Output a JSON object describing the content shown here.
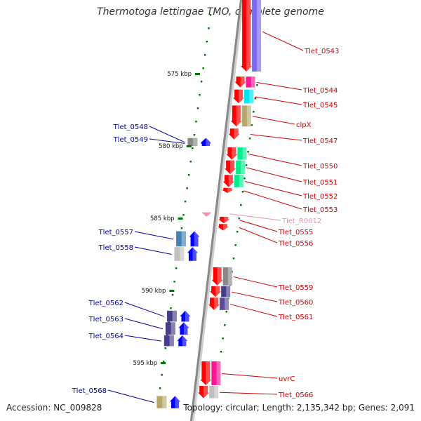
{
  "title": "Thermotoga lettingae TMO, complete genome",
  "footer": {
    "accession": "Accession: NC_009828",
    "summary": "Topology: circular; Length: 2,135,342 bp; Genes: 2,091"
  },
  "colors": {
    "forward_label": "#cc0000",
    "reverse_label": "#000099",
    "rna_label": "#f090b0",
    "forward_arrow": "#ff0000",
    "reverse_arrow": "#0000ff",
    "gc_tick": "#007700",
    "backbone": "#888888"
  },
  "scale": {
    "marks": [
      {
        "kbp": 575,
        "label": "575 kbp"
      },
      {
        "kbp": 580,
        "label": "580 kbp"
      },
      {
        "kbp": 585,
        "label": "585 kbp"
      },
      {
        "kbp": 590,
        "label": "590 kbp"
      },
      {
        "kbp": 595,
        "label": "595 kbp"
      }
    ]
  },
  "genes": [
    {
      "label": "Tlet_0543",
      "strand": "forward",
      "start_kbp": 569.3,
      "end_kbp": 574.9,
      "cog_color": "#7b68ee"
    },
    {
      "label": "Tlet_0544",
      "strand": "forward",
      "start_kbp": 575.2,
      "end_kbp": 576.0,
      "cog_color": "#ff1493"
    },
    {
      "label": "Tlet_0545",
      "strand": "forward",
      "start_kbp": 576.1,
      "end_kbp": 577.1,
      "cog_color": "#00e5ee"
    },
    {
      "label": "clpX",
      "strand": "forward",
      "start_kbp": 577.2,
      "end_kbp": 578.7,
      "cog_color": "#b5a96a"
    },
    {
      "label": "Tlet_0547",
      "strand": "forward",
      "start_kbp": 578.8,
      "end_kbp": 579.6,
      "cog_color": ""
    },
    {
      "label": "Tlet_0548",
      "strand": "reverse",
      "start_kbp": 579.45,
      "end_kbp": 580.05,
      "cog_color": "#888888"
    },
    {
      "label": "Tlet_0549",
      "strand": "reverse",
      "start_kbp": 579.6,
      "end_kbp": 580.05,
      "cog_color": ""
    },
    {
      "label": "Tlet_0550",
      "strand": "forward",
      "start_kbp": 580.1,
      "end_kbp": 581.0,
      "cog_color": "#00ee90"
    },
    {
      "label": "Tlet_0551",
      "strand": "forward",
      "start_kbp": 581.0,
      "end_kbp": 582.0,
      "cog_color": "#00ee90"
    },
    {
      "label": "Tlet_0552",
      "strand": "forward",
      "start_kbp": 582.0,
      "end_kbp": 582.9,
      "cog_color": "#00ee90"
    },
    {
      "label": "Tlet_0553",
      "strand": "forward",
      "start_kbp": 582.9,
      "end_kbp": 583.3,
      "cog_color": ""
    },
    {
      "label": "Tlet_R0012",
      "strand": "forward",
      "start_kbp": 584.6,
      "end_kbp": 584.8,
      "cog_color": "",
      "rna": true
    },
    {
      "label": "Tlet_0555",
      "strand": "forward",
      "start_kbp": 584.9,
      "end_kbp": 585.4,
      "cog_color": ""
    },
    {
      "label": "Tlet_0556",
      "strand": "forward",
      "start_kbp": 585.4,
      "end_kbp": 585.9,
      "cog_color": ""
    },
    {
      "label": "Tlet_0557",
      "strand": "reverse",
      "start_kbp": 585.9,
      "end_kbp": 587.0,
      "cog_color": "#4682b4"
    },
    {
      "label": "Tlet_0558",
      "strand": "reverse",
      "start_kbp": 587.0,
      "end_kbp": 588.0,
      "cog_color": "#c0c0c0"
    },
    {
      "label": "Tlet_0559",
      "strand": "forward",
      "start_kbp": 588.4,
      "end_kbp": 589.7,
      "cog_color": "#888888"
    },
    {
      "label": "Tlet_0560",
      "strand": "forward",
      "start_kbp": 589.7,
      "end_kbp": 590.5,
      "cog_color": "#483d8b"
    },
    {
      "label": "Tlet_0561",
      "strand": "forward",
      "start_kbp": 590.5,
      "end_kbp": 591.4,
      "cog_color": "#5a4a9a"
    },
    {
      "label": "Tlet_0562",
      "strand": "reverse",
      "start_kbp": 591.4,
      "end_kbp": 592.2,
      "cog_color": "#483d8b"
    },
    {
      "label": "Tlet_0563",
      "strand": "reverse",
      "start_kbp": 592.2,
      "end_kbp": 593.1,
      "cog_color": "#483d8b"
    },
    {
      "label": "Tlet_0564",
      "strand": "reverse",
      "start_kbp": 593.1,
      "end_kbp": 593.9,
      "cog_color": "#483d8b"
    },
    {
      "label": "uvrC",
      "strand": "forward",
      "start_kbp": 594.9,
      "end_kbp": 596.6,
      "cog_color": "#ff1493"
    },
    {
      "label": "Tlet_0566",
      "strand": "forward",
      "start_kbp": 596.6,
      "end_kbp": 597.5,
      "cog_color": "#c0c0c0"
    },
    {
      "label": "Tlet_0568",
      "strand": "reverse",
      "start_kbp": 597.3,
      "end_kbp": 598.2,
      "cog_color": "#b5a96a"
    }
  ]
}
